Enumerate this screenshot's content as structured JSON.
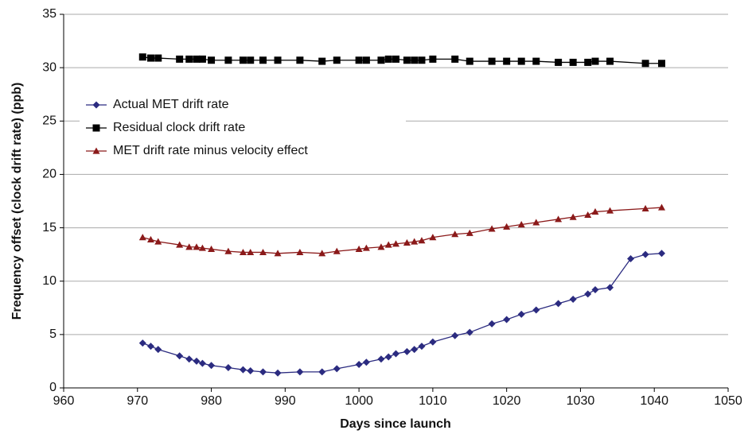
{
  "chart_data": {
    "type": "line",
    "x_label": "Days since launch",
    "y_label": "Frequency offset (clock drift rate) (ppb)",
    "xlim": [
      960,
      1050
    ],
    "xticks": [
      960,
      970,
      980,
      990,
      1000,
      1010,
      1020,
      1030,
      1040,
      1050
    ],
    "ylim": [
      0,
      35
    ],
    "yticks": [
      0,
      5,
      10,
      15,
      20,
      25,
      30,
      35
    ],
    "grid": true,
    "legend": "upper left",
    "series": [
      {
        "name": "Actual MET drift rate",
        "color": "#2b2b80",
        "marker": "diamond",
        "x": [
          970.7,
          971.8,
          972.8,
          975.7,
          977,
          978,
          978.8,
          980,
          982.3,
          984.3,
          985.3,
          987,
          989,
          992,
          995,
          997,
          1000,
          1001,
          1003,
          1004,
          1005,
          1006.5,
          1007.5,
          1008.5,
          1010,
          1013,
          1015,
          1018,
          1020,
          1022,
          1024,
          1027,
          1029,
          1031,
          1032,
          1034,
          1036.8,
          1038.8,
          1041
        ],
        "values": [
          4.2,
          3.9,
          3.6,
          3.0,
          2.7,
          2.5,
          2.3,
          2.1,
          1.9,
          1.7,
          1.6,
          1.5,
          1.4,
          1.5,
          1.5,
          1.8,
          2.2,
          2.4,
          2.7,
          2.9,
          3.2,
          3.4,
          3.6,
          3.9,
          4.3,
          4.9,
          5.2,
          6.0,
          6.4,
          6.9,
          7.3,
          7.9,
          8.3,
          8.8,
          9.2,
          9.4,
          12.1,
          12.5,
          12.6
        ]
      },
      {
        "name": "Residual clock drift rate",
        "color": "#000000",
        "marker": "square",
        "x": [
          970.7,
          971.8,
          972.8,
          975.7,
          977,
          978,
          978.8,
          980,
          982.3,
          984.3,
          985.3,
          987,
          989,
          992,
          995,
          997,
          1000,
          1001,
          1003,
          1004,
          1005,
          1006.5,
          1007.5,
          1008.5,
          1010,
          1013,
          1015,
          1018,
          1020,
          1022,
          1024,
          1027,
          1029,
          1031,
          1032,
          1034,
          1038.8,
          1041
        ],
        "values": [
          31.0,
          30.9,
          30.9,
          30.8,
          30.8,
          30.8,
          30.8,
          30.7,
          30.7,
          30.7,
          30.7,
          30.7,
          30.7,
          30.7,
          30.6,
          30.7,
          30.7,
          30.7,
          30.7,
          30.8,
          30.8,
          30.7,
          30.7,
          30.7,
          30.8,
          30.8,
          30.6,
          30.6,
          30.6,
          30.6,
          30.6,
          30.5,
          30.5,
          30.5,
          30.6,
          30.6,
          30.4,
          30.4
        ]
      },
      {
        "name": "MET drift rate minus velocity effect",
        "color": "#8b1a1a",
        "marker": "triangle",
        "x": [
          970.7,
          971.8,
          972.8,
          975.7,
          977,
          978,
          978.8,
          980,
          982.3,
          984.3,
          985.3,
          987,
          989,
          992,
          995,
          997,
          1000,
          1001,
          1003,
          1004,
          1005,
          1006.5,
          1007.5,
          1008.5,
          1010,
          1013,
          1015,
          1018,
          1020,
          1022,
          1024,
          1027,
          1029,
          1031,
          1032,
          1034,
          1038.8,
          1041
        ],
        "values": [
          14.1,
          13.9,
          13.7,
          13.4,
          13.2,
          13.2,
          13.1,
          13.0,
          12.8,
          12.7,
          12.7,
          12.7,
          12.6,
          12.7,
          12.6,
          12.8,
          13.0,
          13.1,
          13.2,
          13.4,
          13.5,
          13.6,
          13.7,
          13.8,
          14.1,
          14.4,
          14.5,
          14.9,
          15.1,
          15.3,
          15.5,
          15.8,
          16.0,
          16.2,
          16.5,
          16.6,
          16.8,
          16.9
        ]
      }
    ]
  }
}
